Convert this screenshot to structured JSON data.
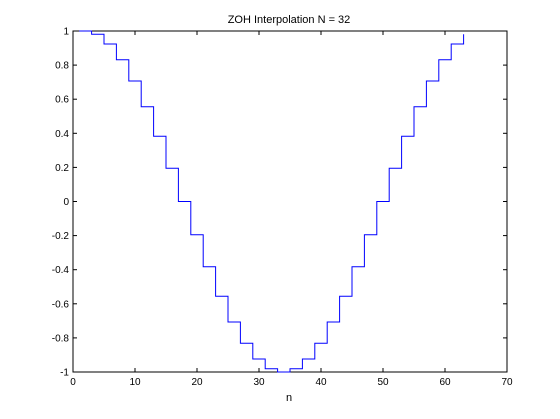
{
  "chart_data": {
    "type": "line",
    "title": "ZOH Interpolation N = 32",
    "xlabel": "n",
    "ylabel": "",
    "xlim": [
      0,
      70
    ],
    "ylim": [
      -1,
      1
    ],
    "xticks": [
      0,
      10,
      20,
      30,
      40,
      50,
      60,
      70
    ],
    "yticks": [
      -1,
      -0.8,
      -0.6,
      -0.4,
      -0.2,
      0,
      0.2,
      0.4,
      0.6,
      0.8,
      1
    ],
    "grid": false,
    "step": "post",
    "series": [
      {
        "color": "#0000ff",
        "x": [
          1,
          3,
          5,
          7,
          9,
          11,
          13,
          15,
          17,
          19,
          21,
          23,
          25,
          27,
          29,
          31,
          33,
          35,
          37,
          39,
          41,
          43,
          45,
          47,
          49,
          51,
          53,
          55,
          57,
          59,
          61,
          63
        ],
        "y": [
          1.0,
          0.981,
          0.924,
          0.831,
          0.707,
          0.556,
          0.383,
          0.195,
          0.0,
          -0.195,
          -0.383,
          -0.556,
          -0.707,
          -0.831,
          -0.924,
          -0.981,
          -1.0,
          -0.981,
          -0.924,
          -0.831,
          -0.707,
          -0.556,
          -0.383,
          -0.195,
          0.0,
          0.195,
          0.383,
          0.556,
          0.707,
          0.831,
          0.924,
          0.981
        ]
      }
    ]
  }
}
